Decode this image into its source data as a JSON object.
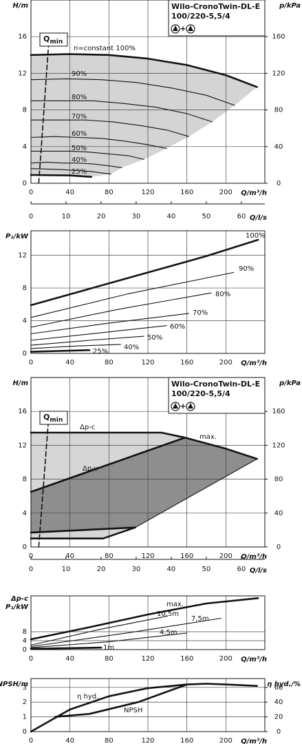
{
  "chart_data": [
    {
      "type": "line",
      "y_label": "H/m",
      "y2_label": "p/kPa",
      "x_label": "Q/m³/h",
      "x2_label": "Q/l/s",
      "model": [
        "Wilo-CronoTwin-DL-E",
        "100/220-5,5/4"
      ],
      "symbol_join": "+",
      "qmin_label": [
        "Q",
        "min"
      ],
      "annotations": [
        "n=constant 100%"
      ],
      "xlim": [
        0,
        240
      ],
      "xticks": [
        0,
        40,
        80,
        120,
        160,
        200
      ],
      "x2lim": [
        0,
        66.7
      ],
      "x2ticks": [
        0,
        10,
        20,
        30,
        40,
        50,
        60
      ],
      "ylim": [
        0,
        20
      ],
      "yticks": [
        0,
        4,
        8,
        12,
        16
      ],
      "y2lim": [
        0,
        200
      ],
      "y2ticks": [
        0,
        40,
        80,
        120,
        160
      ],
      "grid": true,
      "line_color": "#111111",
      "region_colors": [
        "#d4d4d4"
      ],
      "series": [
        {
          "style": "thick",
          "x": [
            0,
            40,
            80,
            120,
            160,
            200,
            232
          ],
          "y": [
            14.0,
            14.1,
            14.0,
            13.6,
            12.9,
            11.8,
            10.5
          ]
        },
        {
          "name": "90%",
          "style": "thin",
          "x": [
            0,
            36,
            72,
            108,
            144,
            180,
            209
          ],
          "y": [
            11.3,
            11.4,
            11.3,
            11.0,
            10.4,
            9.6,
            8.5
          ]
        },
        {
          "name": "80%",
          "style": "thin",
          "x": [
            0,
            32,
            64,
            96,
            128,
            160,
            186
          ],
          "y": [
            9.0,
            9.0,
            9.0,
            8.7,
            8.3,
            7.6,
            6.7
          ]
        },
        {
          "name": "70%",
          "style": "thin",
          "x": [
            0,
            28,
            56,
            84,
            112,
            140,
            162
          ],
          "y": [
            6.9,
            6.9,
            6.9,
            6.7,
            6.3,
            5.8,
            5.1
          ]
        },
        {
          "name": "60%",
          "style": "thin",
          "x": [
            0,
            24,
            48,
            72,
            96,
            120,
            139
          ],
          "y": [
            5.0,
            5.1,
            5.0,
            4.9,
            4.6,
            4.2,
            3.8
          ]
        },
        {
          "name": "50%",
          "style": "thin",
          "x": [
            0,
            20,
            40,
            60,
            80,
            100,
            116
          ],
          "y": [
            3.5,
            3.5,
            3.5,
            3.4,
            3.2,
            3.0,
            2.6
          ]
        },
        {
          "name": "40%",
          "style": "thin",
          "x": [
            0,
            16,
            32,
            48,
            64,
            80,
            93
          ],
          "y": [
            2.2,
            2.3,
            2.2,
            2.2,
            2.1,
            1.9,
            1.7
          ]
        },
        {
          "name": "25%",
          "style": "thin",
          "x": [
            0,
            30,
            60,
            82
          ],
          "y": [
            1.6,
            1.5,
            1.3,
            1.0
          ]
        },
        {
          "style": "thick",
          "x": [
            0,
            40,
            62
          ],
          "y": [
            0.9,
            0.85,
            0.7
          ]
        },
        {
          "style": "dashed",
          "x": [
            8,
            18
          ],
          "y": [
            0,
            15
          ]
        }
      ]
    },
    {
      "type": "line",
      "y_label": "P₁/kW",
      "x_label": "Q/m³/h",
      "xlim": [
        0,
        240
      ],
      "xticks": [
        0,
        40,
        80,
        120,
        160,
        200
      ],
      "ylim": [
        0,
        15
      ],
      "yticks": [
        0,
        4,
        8,
        12
      ],
      "grid": true,
      "line_color": "#111111",
      "series": [
        {
          "name": "100%",
          "style": "thick",
          "x": [
            0,
            60,
            120,
            180,
            233
          ],
          "y": [
            5.9,
            7.9,
            9.9,
            11.9,
            13.9
          ]
        },
        {
          "name": "90%",
          "style": "thin",
          "x": [
            0,
            100,
            208
          ],
          "y": [
            4.4,
            7.3,
            9.9
          ]
        },
        {
          "name": "80%",
          "style": "thin",
          "x": [
            0,
            90,
            185
          ],
          "y": [
            3.2,
            5.4,
            7.4
          ]
        },
        {
          "name": "70%",
          "style": "thin",
          "x": [
            0,
            80,
            162
          ],
          "y": [
            2.4,
            3.7,
            4.9
          ]
        },
        {
          "name": "60%",
          "style": "thin",
          "x": [
            0,
            70,
            139
          ],
          "y": [
            1.6,
            2.5,
            3.4
          ]
        },
        {
          "name": "50%",
          "style": "thin",
          "x": [
            0,
            60,
            116
          ],
          "y": [
            1.0,
            1.6,
            2.1
          ]
        },
        {
          "name": "40%",
          "style": "thin",
          "x": [
            0,
            46,
            92
          ],
          "y": [
            0.6,
            0.9,
            1.1
          ]
        },
        {
          "name": "25%",
          "style": "thick",
          "x": [
            0,
            60
          ],
          "y": [
            0.2,
            0.4
          ]
        }
      ]
    },
    {
      "type": "line",
      "y_label": "H/m",
      "y2_label": "p/kPa",
      "x_label": "Q/m³/h",
      "x2_label": "Q/l/s",
      "model": [
        "Wilo-CronoTwin-DL-E",
        "100/220-5,5/4"
      ],
      "symbol_join": "+",
      "qmin_label": [
        "Q",
        "min"
      ],
      "xlim": [
        0,
        240
      ],
      "xticks": [
        0,
        40,
        80,
        120,
        160,
        200
      ],
      "x2lim": [
        0,
        66.7
      ],
      "x2ticks": [
        0,
        10,
        20,
        30,
        40,
        50,
        60
      ],
      "ylim": [
        0,
        20
      ],
      "yticks": [
        0,
        4,
        8,
        12,
        16
      ],
      "y2lim": [
        0,
        200
      ],
      "y2ticks": [
        0,
        40,
        80,
        120,
        160
      ],
      "grid": true,
      "line_color": "#111111",
      "region_colors": [
        "#d6d6d6",
        "#8e8e8e"
      ],
      "series": [
        {
          "name": "Δp-c",
          "style": "thick",
          "x": [
            0,
            134,
            158
          ],
          "y": [
            13.5,
            13.5,
            12.9
          ]
        },
        {
          "name": "max.",
          "style": "thick",
          "x": [
            158,
            200,
            232
          ],
          "y": [
            12.9,
            11.6,
            10.4
          ]
        },
        {
          "name": "Δp-v",
          "style": "thick",
          "x": [
            0,
            158
          ],
          "y": [
            6.5,
            12.9
          ]
        },
        {
          "style": "thin",
          "x": [
            232,
            107
          ],
          "y": [
            10.4,
            2.3
          ]
        },
        {
          "style": "thick",
          "x": [
            0,
            107
          ],
          "y": [
            1.7,
            2.3
          ]
        },
        {
          "style": "thick",
          "x": [
            0,
            74,
            107
          ],
          "y": [
            1.0,
            1.0,
            2.3
          ]
        },
        {
          "style": "dashed",
          "x": [
            8,
            18
          ],
          "y": [
            0,
            15
          ]
        }
      ]
    },
    {
      "type": "line",
      "y_label": [
        "Δp-c",
        "P₁/kW"
      ],
      "x_label": "Q/m³/h",
      "xlim": [
        0,
        240
      ],
      "xticks": [
        0,
        40,
        80,
        120,
        160,
        200
      ],
      "ylim": [
        0,
        24
      ],
      "yticks": [
        0,
        4,
        8
      ],
      "grid": true,
      "line_color": "#111111",
      "series": [
        {
          "name": "max.",
          "style": "thick",
          "x": [
            0,
            60,
            120,
            180,
            233
          ],
          "y": [
            4.6,
            10,
            15.7,
            20.6,
            23
          ]
        },
        {
          "name": "10,5m",
          "style": "thin",
          "x": [
            0,
            70,
            140
          ],
          "y": [
            2.0,
            9,
            15
          ]
        },
        {
          "name": "7,5m",
          "style": "thin",
          "x": [
            0,
            100,
            195
          ],
          "y": [
            1.4,
            7.5,
            14
          ]
        },
        {
          "name": "4,5m",
          "style": "thin",
          "x": [
            0,
            80,
            160
          ],
          "y": [
            0.9,
            3.5,
            7.4
          ]
        },
        {
          "name": "1m",
          "style": "thick",
          "x": [
            0,
            72
          ],
          "y": [
            0.4,
            0.9
          ]
        }
      ]
    },
    {
      "type": "line",
      "y_label": "NPSH/m",
      "y2_label": "η hyd./%",
      "x_label": "Q/m³/h",
      "xlim": [
        0,
        240
      ],
      "xticks": [
        0,
        40,
        80,
        120,
        160,
        200
      ],
      "ylim": [
        0,
        3.6
      ],
      "yticks": [
        0,
        1,
        2,
        3
      ],
      "y2lim": [
        0,
        72
      ],
      "y2ticks": [
        0,
        20,
        40,
        60
      ],
      "grid": true,
      "line_color": "#111111",
      "series": [
        {
          "name": "NPSH",
          "style": "thick",
          "x": [
            25,
            60,
            110,
            160
          ],
          "y": [
            1.0,
            1.2,
            2.0,
            3.2
          ]
        },
        {
          "name": "η hyd.",
          "style": "thick",
          "axis": "y2",
          "x": [
            0,
            40,
            80,
            120,
            160,
            180,
            200,
            232
          ],
          "y": [
            0,
            30,
            48,
            59,
            64,
            65,
            64,
            62
          ]
        }
      ]
    }
  ]
}
